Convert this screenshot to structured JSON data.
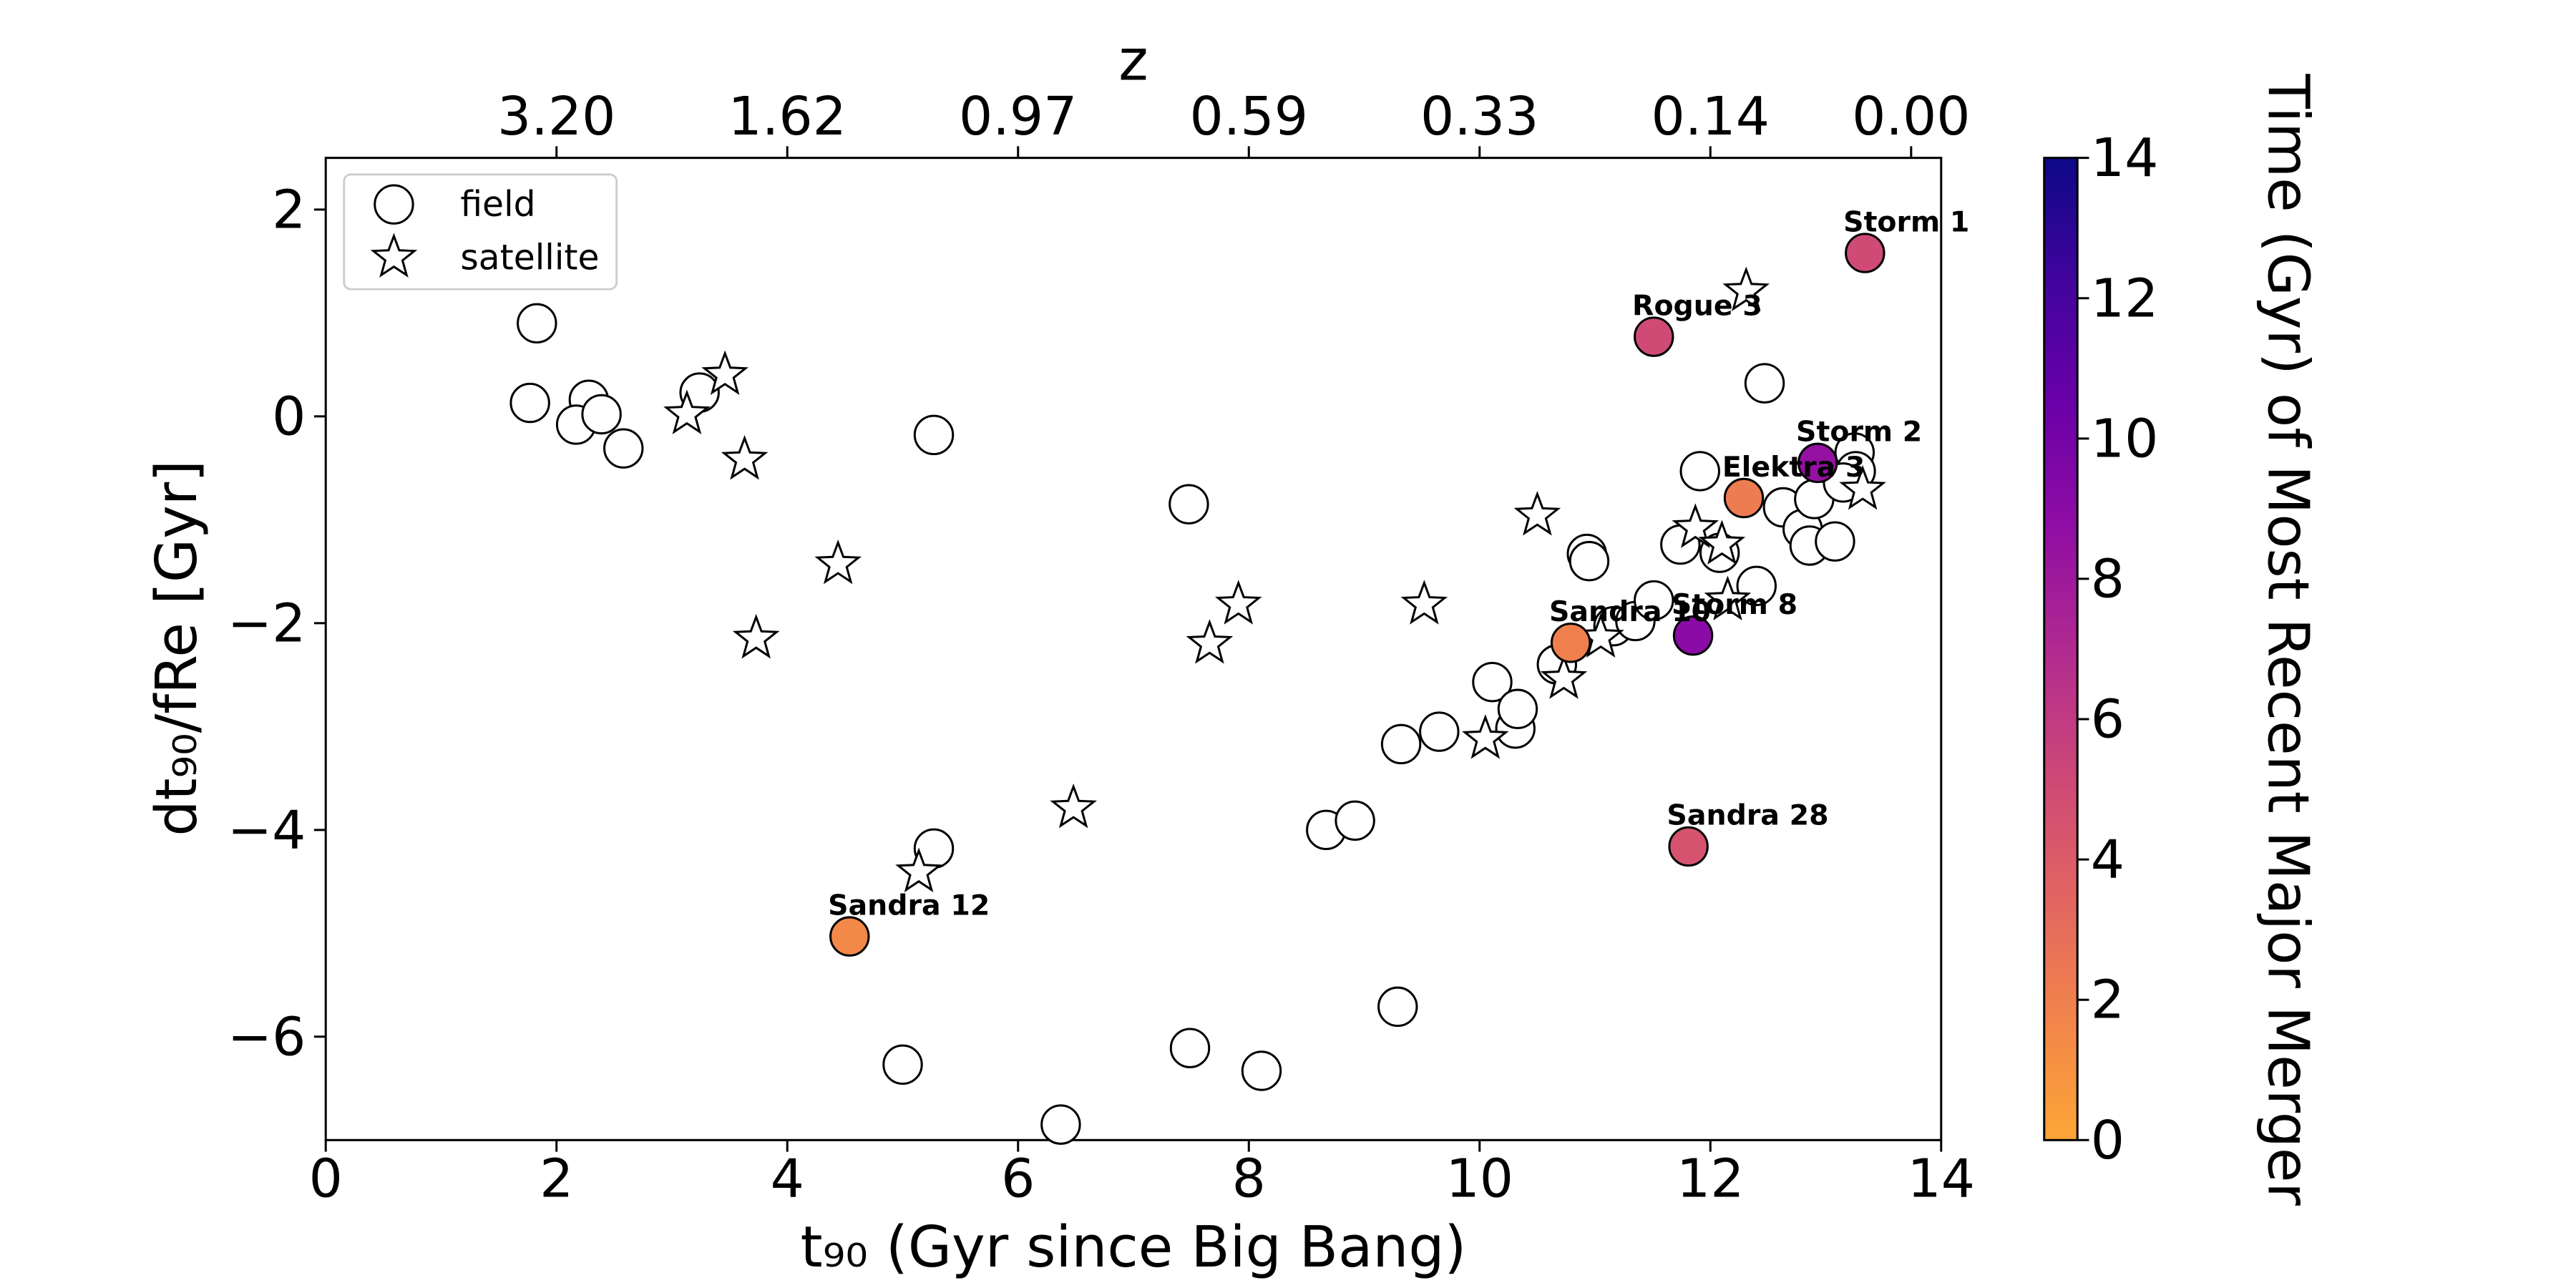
{
  "chart_data": {
    "type": "scatter",
    "xlabel": "t₉₀ (Gyr since Big Bang)",
    "ylabel": "dt₉₀/fRe [Gyr]",
    "x2label": "z",
    "xlim": [
      0,
      14
    ],
    "ylim": [
      -7,
      2.5
    ],
    "xticks": [
      0,
      2,
      4,
      6,
      8,
      10,
      12,
      14
    ],
    "yticks": [
      -6,
      -4,
      -2,
      0,
      2
    ],
    "x2ticks": [
      {
        "value": 2,
        "label": "3.20"
      },
      {
        "value": 4,
        "label": "1.62"
      },
      {
        "value": 6,
        "label": "0.97"
      },
      {
        "value": 8,
        "label": "0.59"
      },
      {
        "value": 10,
        "label": "0.33"
      },
      {
        "value": 12,
        "label": "0.14"
      },
      {
        "value": 13.74,
        "label": "0.00"
      }
    ],
    "legend": "upper left",
    "series": [
      {
        "name": "field",
        "marker": "circle",
        "x": [
          1.83,
          1.77,
          2.28,
          2.17,
          2.39,
          2.58,
          3.24,
          5.27,
          7.48,
          5.27,
          5.0,
          6.37,
          7.49,
          8.11,
          9.29,
          8.67,
          8.92,
          9.32,
          9.65,
          10.11,
          10.31,
          10.33,
          10.67,
          10.93,
          10.95,
          11.16,
          11.35,
          11.51,
          11.74,
          11.91,
          12.08,
          12.4,
          12.47,
          12.63,
          12.8,
          12.86,
          12.9,
          13.08,
          13.25,
          13.26,
          13.15
        ],
        "values": [
          0.9,
          0.13,
          0.16,
          -0.08,
          0.02,
          -0.31,
          0.23,
          -0.18,
          -0.85,
          -4.18,
          -6.27,
          -6.85,
          -6.11,
          -6.33,
          -5.71,
          -4.0,
          -3.91,
          -3.17,
          -3.05,
          -2.57,
          -3.02,
          -2.83,
          -2.4,
          -1.33,
          -1.4,
          -2.03,
          -1.98,
          -1.78,
          -1.24,
          -0.53,
          -1.32,
          -1.64,
          0.32,
          -0.88,
          -1.09,
          -1.25,
          -0.8,
          -1.21,
          -0.35,
          -0.53,
          -0.64
        ]
      },
      {
        "name": "satellite",
        "marker": "star",
        "x": [
          3.46,
          3.13,
          3.63,
          4.44,
          3.73,
          6.48,
          5.14,
          7.66,
          7.91,
          9.52,
          10.05,
          10.5,
          10.73,
          11.05,
          11.87,
          12.1,
          12.15,
          12.31,
          13.32
        ],
        "values": [
          0.4,
          0.02,
          -0.42,
          -1.43,
          -2.15,
          -3.79,
          -4.41,
          -2.2,
          -1.82,
          -1.82,
          -3.12,
          -0.96,
          -2.54,
          -2.14,
          -1.08,
          -1.24,
          -1.78,
          1.21,
          -0.71
        ]
      }
    ],
    "highlighted": {
      "labels": [
        "Storm 1",
        "Rogue 3",
        "Storm 2",
        "Elektra 3",
        "Sandra 10",
        "Storm 8",
        "Sandra 28",
        "Sandra 12"
      ],
      "x": [
        13.34,
        11.51,
        12.93,
        12.29,
        10.79,
        11.85,
        11.81,
        4.54
      ],
      "values": [
        1.58,
        0.77,
        -0.45,
        -0.79,
        -2.19,
        -2.12,
        -4.16,
        -5.03
      ],
      "c": [
        5,
        5,
        8.5,
        2.2,
        2,
        9,
        4.5,
        1.5
      ]
    },
    "colorbar": {
      "label": "Time (Gyr) of Most Recent Major Merger",
      "clim": [
        0,
        14
      ],
      "ticks": [
        0,
        2,
        4,
        6,
        8,
        10,
        12,
        14
      ],
      "colormap": [
        "#fca636",
        "#f2844b",
        "#e16462",
        "#cc4778",
        "#b12a90",
        "#8f0da4",
        "#6a00a8",
        "#41049d",
        "#0d0887"
      ]
    }
  }
}
